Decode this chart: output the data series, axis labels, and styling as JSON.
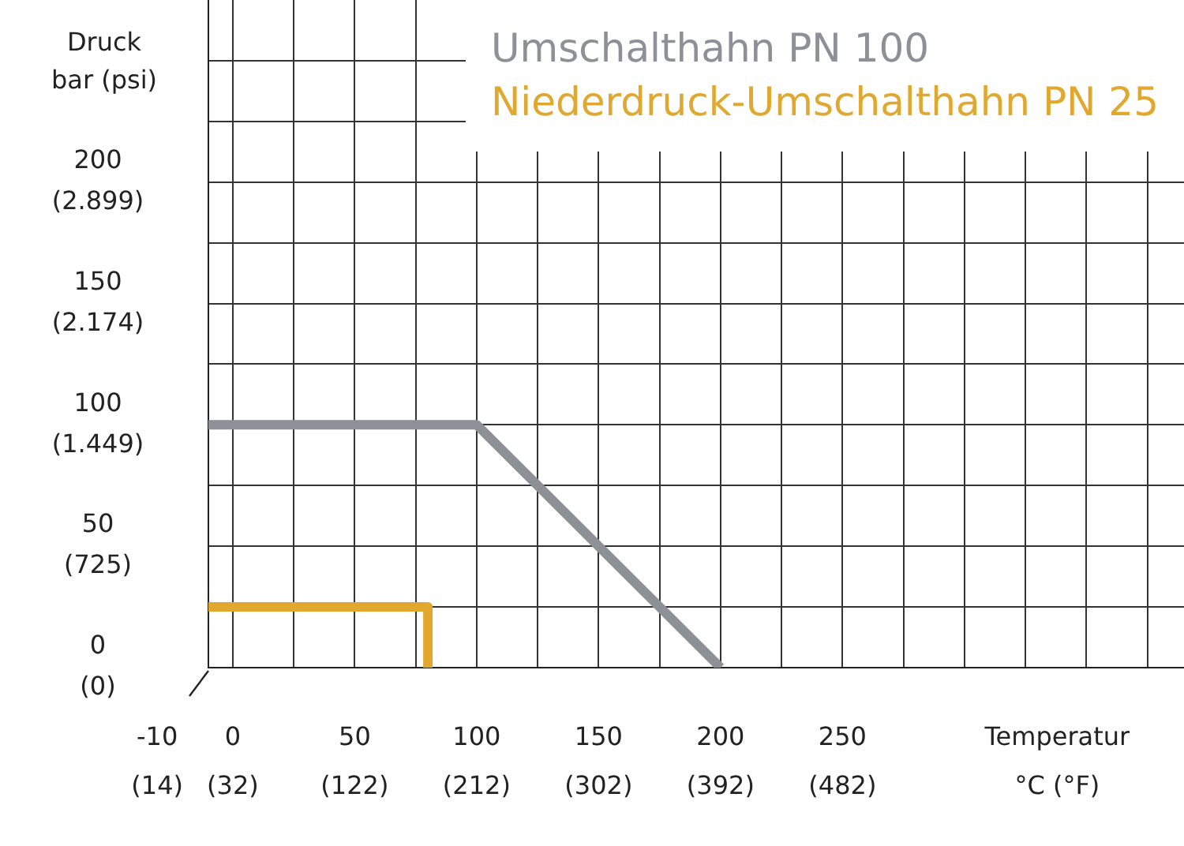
{
  "chart_data": {
    "type": "line",
    "xlabel": "Temperatur\n°C (°F)",
    "ylabel": "Druck\nbar",
    "y2label": "(psi)",
    "xlim": [
      -10,
      390
    ],
    "ylim": [
      0,
      275
    ],
    "x2lim": [
      14,
      734
    ],
    "y2lim": [
      0,
      3986
    ],
    "annotations": [
      "-10\n(14)"
    ],
    "xticks": [
      0,
      {
        "value": 25,
        "label": null
      },
      50,
      {
        "value": 75,
        "label": null
      },
      100,
      {
        "value": 125,
        "label": null
      },
      150,
      {
        "value": 175,
        "label": null
      },
      200,
      {
        "value": 225,
        "label": null
      },
      250,
      {
        "value": 275,
        "label": null
      },
      {
        "value": 300,
        "label": null
      },
      {
        "value": 325,
        "label": null
      },
      {
        "value": 350,
        "label": null
      },
      {
        "value": 375,
        "label": null
      }
    ],
    "x2ticks": [
      {
        "value": 32,
        "label": "(32)"
      },
      {
        "value": 122,
        "label": "(122)"
      },
      {
        "value": 212,
        "label": "(212)"
      },
      {
        "value": 302,
        "label": "(302)"
      },
      {
        "value": 392,
        "label": "(392)"
      },
      {
        "value": 482,
        "label": "(482)"
      }
    ],
    "yticks": [
      0,
      {
        "value": 25,
        "label": null
      },
      50,
      {
        "value": 75,
        "label": null
      },
      100,
      {
        "value": 125,
        "label": null
      },
      150,
      {
        "value": 175,
        "label": null
      },
      200,
      {
        "value": 225,
        "label": null
      },
      {
        "value": 250,
        "label": null
      }
    ],
    "y2ticks": [
      {
        "value": 0,
        "label": "(0)"
      },
      {
        "value": 725,
        "label": "(725)"
      },
      {
        "value": 1449,
        "label": "(1.449)"
      },
      {
        "value": 2174,
        "label": "(2.174)"
      },
      {
        "value": 2899,
        "label": "(2.899)"
      }
    ],
    "grid": true,
    "legend": "top right",
    "marker": "none",
    "series": [
      {
        "name": "Umschalthahn PN 100",
        "color": "#8d9096",
        "x": [
          -10,
          100,
          200
        ],
        "values": [
          100,
          100,
          0
        ]
      },
      {
        "name": "Niederdruck-Umschalthahn PN 25",
        "color": "#e0a82e",
        "x": [
          -10,
          80,
          80
        ],
        "values": [
          25,
          25,
          0
        ]
      }
    ]
  }
}
